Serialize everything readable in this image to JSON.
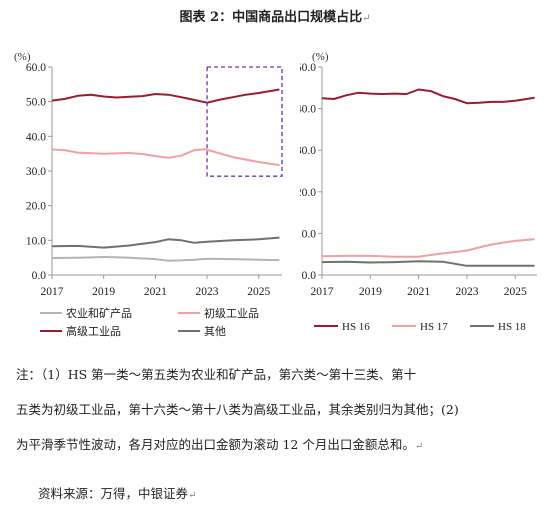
{
  "title": "图表 2：中国商品出口规模占比",
  "para_mark": "↵",
  "note_line1": "注：（1）HS 第一类～第五类为农业和矿产品，第六类～第十三类、第十",
  "note_line2": "五类为初级工业品，第十六类～第十八类为高级工业品，其余类别归为其他；(2)",
  "note_line3": "为平滑季节性波动，各月对应的出口金额为滚动 12 个月出口金额总和。",
  "source": "资料来源：万得，中银证券",
  "chart_data": [
    {
      "type": "line",
      "ylabel": "(%)",
      "ylim": [
        0,
        60
      ],
      "yticks": [
        "0.0",
        "10.0",
        "20.0",
        "30.0",
        "40.0",
        "50.0",
        "60.0"
      ],
      "xlim": [
        2017,
        2025.9
      ],
      "xticks": [
        "2017",
        "2019",
        "2021",
        "2023",
        "2025"
      ],
      "legend_position": "bottom",
      "highlight_box": {
        "x": [
          2023,
          2025.9
        ],
        "y": [
          28.5,
          60
        ]
      },
      "series": [
        {
          "name": "农业和矿产品",
          "color": "#b4b4b4",
          "x": [
            2017,
            2018,
            2019,
            2020,
            2021,
            2021.5,
            2022,
            2022.5,
            2023,
            2024,
            2025,
            2025.8
          ],
          "y": [
            4.9,
            5.0,
            5.2,
            5.0,
            4.6,
            4.1,
            4.2,
            4.4,
            4.7,
            4.6,
            4.4,
            4.3
          ]
        },
        {
          "name": "初级工业品",
          "color": "#f0a0a0",
          "x": [
            2017,
            2017.5,
            2018,
            2019,
            2020,
            2020.5,
            2021,
            2021.5,
            2022,
            2022.5,
            2022.9,
            2023.3,
            2024,
            2025,
            2025.8
          ],
          "y": [
            36.2,
            36.0,
            35.3,
            35.0,
            35.2,
            34.9,
            34.3,
            33.8,
            34.4,
            36.0,
            36.3,
            35.5,
            34.0,
            32.6,
            31.7
          ]
        },
        {
          "name": "高级工业品",
          "color": "#9b1b30",
          "x": [
            2017,
            2017.5,
            2018,
            2018.5,
            2019,
            2019.5,
            2020,
            2020.5,
            2021,
            2021.5,
            2022,
            2022.5,
            2023,
            2023.5,
            2024,
            2024.5,
            2025,
            2025.8
          ],
          "y": [
            50.3,
            50.8,
            51.7,
            52.0,
            51.5,
            51.2,
            51.4,
            51.6,
            52.2,
            52.0,
            51.3,
            50.5,
            49.7,
            50.6,
            51.3,
            52.0,
            52.5,
            53.5
          ]
        },
        {
          "name": "其他",
          "color": "#707070",
          "x": [
            2017,
            2018,
            2019,
            2020,
            2020.5,
            2021,
            2021.5,
            2022,
            2022.5,
            2023,
            2024,
            2025,
            2025.8
          ],
          "y": [
            8.3,
            8.4,
            7.9,
            8.5,
            9.0,
            9.5,
            10.3,
            10.0,
            9.3,
            9.6,
            10.0,
            10.3,
            10.8
          ]
        }
      ]
    },
    {
      "type": "line",
      "ylabel": "(%)",
      "ylim": [
        0,
        50
      ],
      "yticks": [
        "0.0",
        "10.0",
        "20.0",
        "30.0",
        "40.0",
        "50.0"
      ],
      "xlim": [
        2017,
        2025.9
      ],
      "xticks": [
        "2017",
        "2019",
        "2021",
        "2023",
        "2025"
      ],
      "legend_position": "bottom",
      "series": [
        {
          "name": "HS 16",
          "color": "#9b1b30",
          "x": [
            2017,
            2017.5,
            2018,
            2018.5,
            2019,
            2019.5,
            2020,
            2020.5,
            2021,
            2021.5,
            2022,
            2022.5,
            2023,
            2023.5,
            2024,
            2024.5,
            2025,
            2025.8
          ],
          "y": [
            42.5,
            42.3,
            43.2,
            43.8,
            43.6,
            43.5,
            43.6,
            43.5,
            44.6,
            44.2,
            43.0,
            42.3,
            41.3,
            41.4,
            41.6,
            41.6,
            41.9,
            42.6
          ]
        },
        {
          "name": "HS 17",
          "color": "#f0a0a0",
          "x": [
            2017,
            2018,
            2019,
            2020,
            2021,
            2021.5,
            2022,
            2022.5,
            2023,
            2023.5,
            2024,
            2024.5,
            2025,
            2025.8
          ],
          "y": [
            4.5,
            4.6,
            4.6,
            4.4,
            4.4,
            4.8,
            5.2,
            5.5,
            5.9,
            6.6,
            7.3,
            7.8,
            8.2,
            8.6
          ]
        },
        {
          "name": "HS 18",
          "color": "#707070",
          "x": [
            2017,
            2018,
            2019,
            2020,
            2021,
            2022,
            2022.5,
            2023,
            2024,
            2025,
            2025.8
          ],
          "y": [
            3.1,
            3.2,
            3.0,
            3.1,
            3.3,
            3.2,
            2.7,
            2.2,
            2.2,
            2.2,
            2.2
          ]
        }
      ]
    }
  ]
}
